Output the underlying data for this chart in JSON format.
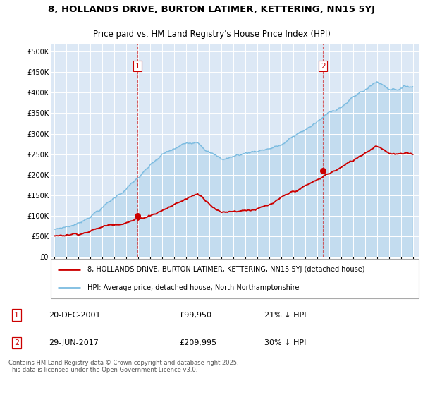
{
  "title": "8, HOLLANDS DRIVE, BURTON LATIMER, KETTERING, NN15 5YJ",
  "subtitle": "Price paid vs. HM Land Registry's House Price Index (HPI)",
  "ylabel_ticks": [
    "£0",
    "£50K",
    "£100K",
    "£150K",
    "£200K",
    "£250K",
    "£300K",
    "£350K",
    "£400K",
    "£450K",
    "£500K"
  ],
  "ytick_values": [
    0,
    50000,
    100000,
    150000,
    200000,
    250000,
    300000,
    350000,
    400000,
    450000,
    500000
  ],
  "ylim": [
    0,
    520000
  ],
  "x_start_year": 1995,
  "x_end_year": 2025,
  "marker1_date": 2001.97,
  "marker1_value": 99950,
  "marker1_label": "1",
  "marker1_date_str": "20-DEC-2001",
  "marker1_price": "£99,950",
  "marker1_hpi": "21% ↓ HPI",
  "marker2_date": 2017.49,
  "marker2_value": 209995,
  "marker2_label": "2",
  "marker2_date_str": "29-JUN-2017",
  "marker2_price": "£209,995",
  "marker2_hpi": "30% ↓ HPI",
  "legend_line1": "8, HOLLANDS DRIVE, BURTON LATIMER, KETTERING, NN15 5YJ (detached house)",
  "legend_line2": "HPI: Average price, detached house, North Northamptonshire",
  "footer": "Contains HM Land Registry data © Crown copyright and database right 2025.\nThis data is licensed under the Open Government Licence v3.0.",
  "hpi_color": "#7abbe0",
  "price_color": "#cc0000",
  "vline_color": "#cc0000",
  "bg_color": "#ffffff",
  "plot_bg_color": "#dce8f5"
}
